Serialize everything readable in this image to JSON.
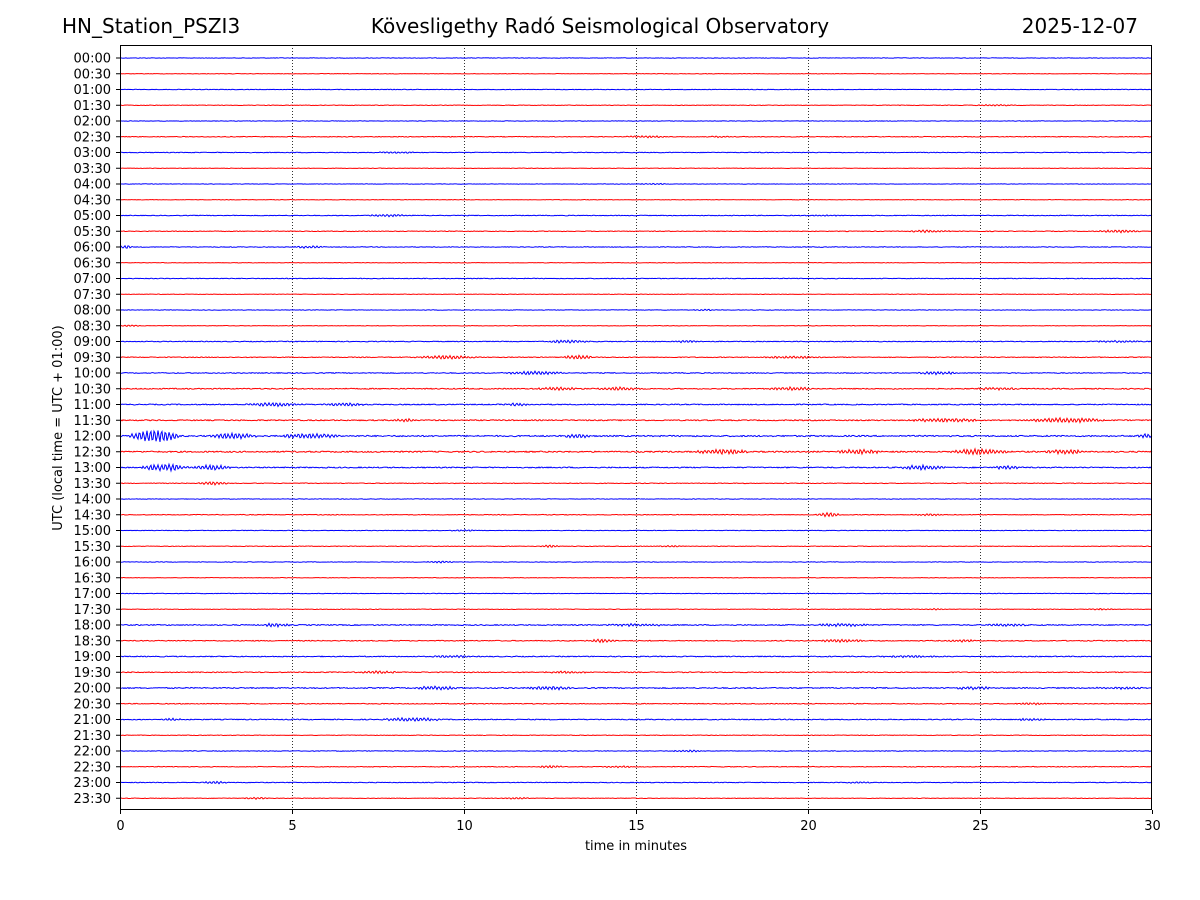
{
  "chart_data": {
    "type": "line",
    "title_left": "HN_Station_PSZI3",
    "title": "Kövesligethy Radó Seismological Observatory",
    "title_right": "2025-12-07",
    "xlabel": "time in minutes",
    "ylabel": "UTC (local time = UTC + 01:00)",
    "xlim": [
      0,
      30
    ],
    "x_ticks": [
      0,
      5,
      10,
      15,
      20,
      25,
      30
    ],
    "grid": "vertical dotted",
    "series_colors": [
      "#0000ff",
      "#ff0000"
    ],
    "rows": [
      {
        "label": "00:00",
        "color": "#0000ff",
        "amp": 0.5,
        "events": []
      },
      {
        "label": "00:30",
        "color": "#ff0000",
        "amp": 0.4,
        "events": []
      },
      {
        "label": "01:00",
        "color": "#0000ff",
        "amp": 0.5,
        "events": []
      },
      {
        "label": "01:30",
        "color": "#ff0000",
        "amp": 0.5,
        "events": [
          [
            25.5,
            0.6,
            1.5
          ]
        ]
      },
      {
        "label": "02:00",
        "color": "#0000ff",
        "amp": 0.5,
        "events": []
      },
      {
        "label": "02:30",
        "color": "#ff0000",
        "amp": 0.6,
        "events": [
          [
            15.3,
            0.8,
            1.5
          ],
          [
            17.5,
            0.6,
            1.0
          ]
        ]
      },
      {
        "label": "03:00",
        "color": "#0000ff",
        "amp": 0.6,
        "events": [
          [
            8.0,
            0.6,
            1.5
          ]
        ]
      },
      {
        "label": "03:30",
        "color": "#ff0000",
        "amp": 0.4,
        "events": []
      },
      {
        "label": "04:00",
        "color": "#0000ff",
        "amp": 0.4,
        "events": [
          [
            15.5,
            0.5,
            1.0
          ]
        ]
      },
      {
        "label": "04:30",
        "color": "#ff0000",
        "amp": 0.4,
        "events": []
      },
      {
        "label": "05:00",
        "color": "#0000ff",
        "amp": 0.6,
        "events": [
          [
            7.8,
            1.0,
            1.5
          ],
          [
            20.5,
            0.6,
            1.0
          ]
        ]
      },
      {
        "label": "05:30",
        "color": "#ff0000",
        "amp": 0.6,
        "events": [
          [
            23.5,
            1.0,
            1.5
          ],
          [
            29.0,
            1.2,
            1.5
          ]
        ]
      },
      {
        "label": "06:00",
        "color": "#0000ff",
        "amp": 0.6,
        "events": [
          [
            0.2,
            1.2,
            0.5
          ],
          [
            5.5,
            1.0,
            1.0
          ]
        ]
      },
      {
        "label": "06:30",
        "color": "#ff0000",
        "amp": 0.4,
        "events": []
      },
      {
        "label": "07:00",
        "color": "#0000ff",
        "amp": 0.6,
        "events": []
      },
      {
        "label": "07:30",
        "color": "#ff0000",
        "amp": 0.4,
        "events": []
      },
      {
        "label": "08:00",
        "color": "#0000ff",
        "amp": 0.5,
        "events": [
          [
            17.0,
            0.6,
            1.0
          ]
        ]
      },
      {
        "label": "08:30",
        "color": "#ff0000",
        "amp": 0.4,
        "events": [
          [
            0.3,
            0.6,
            0.8
          ]
        ]
      },
      {
        "label": "09:00",
        "color": "#0000ff",
        "amp": 0.7,
        "events": [
          [
            13.0,
            1.2,
            1.5
          ],
          [
            16.5,
            1.0,
            1.0
          ],
          [
            29.0,
            0.8,
            1.5
          ]
        ]
      },
      {
        "label": "09:30",
        "color": "#ff0000",
        "amp": 0.7,
        "events": [
          [
            9.5,
            1.5,
            2.0
          ],
          [
            13.3,
            2.0,
            1.0
          ],
          [
            19.5,
            1.0,
            2.0
          ]
        ]
      },
      {
        "label": "10:00",
        "color": "#0000ff",
        "amp": 0.8,
        "events": [
          [
            12.0,
            1.5,
            2.0
          ],
          [
            23.8,
            1.2,
            1.5
          ]
        ]
      },
      {
        "label": "10:30",
        "color": "#ff0000",
        "amp": 0.9,
        "events": [
          [
            12.7,
            1.3,
            1.5
          ],
          [
            14.5,
            1.4,
            1.5
          ],
          [
            19.5,
            1.4,
            1.5
          ],
          [
            25.5,
            1.0,
            1.5
          ]
        ]
      },
      {
        "label": "11:00",
        "color": "#0000ff",
        "amp": 0.9,
        "events": [
          [
            4.5,
            1.5,
            2.0
          ],
          [
            6.5,
            1.2,
            1.5
          ],
          [
            11.5,
            1.0,
            1.0
          ]
        ]
      },
      {
        "label": "11:30",
        "color": "#ff0000",
        "amp": 1.0,
        "events": [
          [
            8.3,
            1.5,
            0.8
          ],
          [
            24.0,
            1.5,
            2.5
          ],
          [
            27.5,
            2.0,
            2.5
          ]
        ]
      },
      {
        "label": "12:00",
        "color": "#0000ff",
        "amp": 1.2,
        "events": [
          [
            1.0,
            6.0,
            1.6
          ],
          [
            3.3,
            2.5,
            1.5
          ],
          [
            5.5,
            2.0,
            2.0
          ],
          [
            13.3,
            2.0,
            1.0
          ],
          [
            29.8,
            2.0,
            0.6
          ]
        ]
      },
      {
        "label": "12:30",
        "color": "#ff0000",
        "amp": 1.2,
        "events": [
          [
            17.5,
            2.2,
            1.8
          ],
          [
            21.5,
            2.0,
            1.5
          ],
          [
            25.0,
            2.5,
            2.0
          ],
          [
            27.5,
            2.0,
            1.5
          ]
        ]
      },
      {
        "label": "13:00",
        "color": "#0000ff",
        "amp": 1.0,
        "events": [
          [
            1.3,
            3.0,
            1.6
          ],
          [
            2.7,
            2.2,
            1.2
          ],
          [
            23.3,
            2.0,
            1.5
          ],
          [
            25.8,
            1.5,
            1.0
          ]
        ]
      },
      {
        "label": "13:30",
        "color": "#ff0000",
        "amp": 0.6,
        "events": [
          [
            2.7,
            1.5,
            1.0
          ]
        ]
      },
      {
        "label": "14:00",
        "color": "#0000ff",
        "amp": 0.5,
        "events": []
      },
      {
        "label": "14:30",
        "color": "#ff0000",
        "amp": 0.6,
        "events": [
          [
            20.6,
            1.8,
            0.8
          ],
          [
            23.5,
            0.8,
            1.0
          ]
        ]
      },
      {
        "label": "15:00",
        "color": "#0000ff",
        "amp": 0.5,
        "events": [
          [
            10.0,
            0.6,
            1.0
          ]
        ]
      },
      {
        "label": "15:30",
        "color": "#ff0000",
        "amp": 0.5,
        "events": [
          [
            12.5,
            1.0,
            0.8
          ],
          [
            16.0,
            0.6,
            1.0
          ]
        ]
      },
      {
        "label": "16:00",
        "color": "#0000ff",
        "amp": 0.5,
        "events": [
          [
            9.3,
            0.8,
            1.0
          ]
        ]
      },
      {
        "label": "16:30",
        "color": "#ff0000",
        "amp": 0.4,
        "events": []
      },
      {
        "label": "17:00",
        "color": "#0000ff",
        "amp": 0.5,
        "events": []
      },
      {
        "label": "17:30",
        "color": "#ff0000",
        "amp": 0.5,
        "events": [
          [
            23.8,
            0.6,
            1.0
          ],
          [
            28.5,
            0.6,
            1.0
          ]
        ]
      },
      {
        "label": "18:00",
        "color": "#0000ff",
        "amp": 0.9,
        "events": [
          [
            4.5,
            1.5,
            1.0
          ],
          [
            15.0,
            1.0,
            2.0
          ],
          [
            21.0,
            1.2,
            2.0
          ],
          [
            25.8,
            1.0,
            1.5
          ]
        ]
      },
      {
        "label": "18:30",
        "color": "#ff0000",
        "amp": 0.8,
        "events": [
          [
            14.0,
            1.5,
            1.0
          ],
          [
            21.0,
            1.3,
            1.5
          ],
          [
            24.5,
            1.0,
            1.0
          ]
        ]
      },
      {
        "label": "19:00",
        "color": "#0000ff",
        "amp": 0.8,
        "events": [
          [
            9.7,
            1.0,
            1.5
          ],
          [
            23.0,
            0.8,
            2.0
          ]
        ]
      },
      {
        "label": "19:30",
        "color": "#ff0000",
        "amp": 0.8,
        "events": [
          [
            7.5,
            1.0,
            1.5
          ],
          [
            13.0,
            0.8,
            1.5
          ]
        ]
      },
      {
        "label": "20:00",
        "color": "#0000ff",
        "amp": 1.0,
        "events": [
          [
            9.2,
            1.5,
            1.5
          ],
          [
            12.5,
            1.4,
            1.5
          ],
          [
            24.8,
            1.2,
            1.5
          ],
          [
            29.0,
            1.0,
            1.5
          ]
        ]
      },
      {
        "label": "20:30",
        "color": "#ff0000",
        "amp": 0.7,
        "events": [
          [
            26.5,
            0.8,
            1.0
          ]
        ]
      },
      {
        "label": "21:00",
        "color": "#0000ff",
        "amp": 0.8,
        "events": [
          [
            1.5,
            1.0,
            0.8
          ],
          [
            8.5,
            1.5,
            2.0
          ],
          [
            26.5,
            1.0,
            1.0
          ]
        ]
      },
      {
        "label": "21:30",
        "color": "#ff0000",
        "amp": 0.5,
        "events": []
      },
      {
        "label": "22:00",
        "color": "#0000ff",
        "amp": 0.6,
        "events": [
          [
            16.5,
            0.8,
            1.0
          ]
        ]
      },
      {
        "label": "22:30",
        "color": "#ff0000",
        "amp": 0.6,
        "events": [
          [
            12.5,
            1.0,
            1.0
          ],
          [
            14.5,
            0.8,
            1.0
          ]
        ]
      },
      {
        "label": "23:00",
        "color": "#0000ff",
        "amp": 0.6,
        "events": [
          [
            2.8,
            1.0,
            1.0
          ],
          [
            21.5,
            0.6,
            1.0
          ]
        ]
      },
      {
        "label": "23:30",
        "color": "#ff0000",
        "amp": 0.5,
        "events": [
          [
            4.0,
            0.8,
            1.0
          ],
          [
            11.5,
            0.8,
            1.0
          ]
        ]
      }
    ]
  }
}
